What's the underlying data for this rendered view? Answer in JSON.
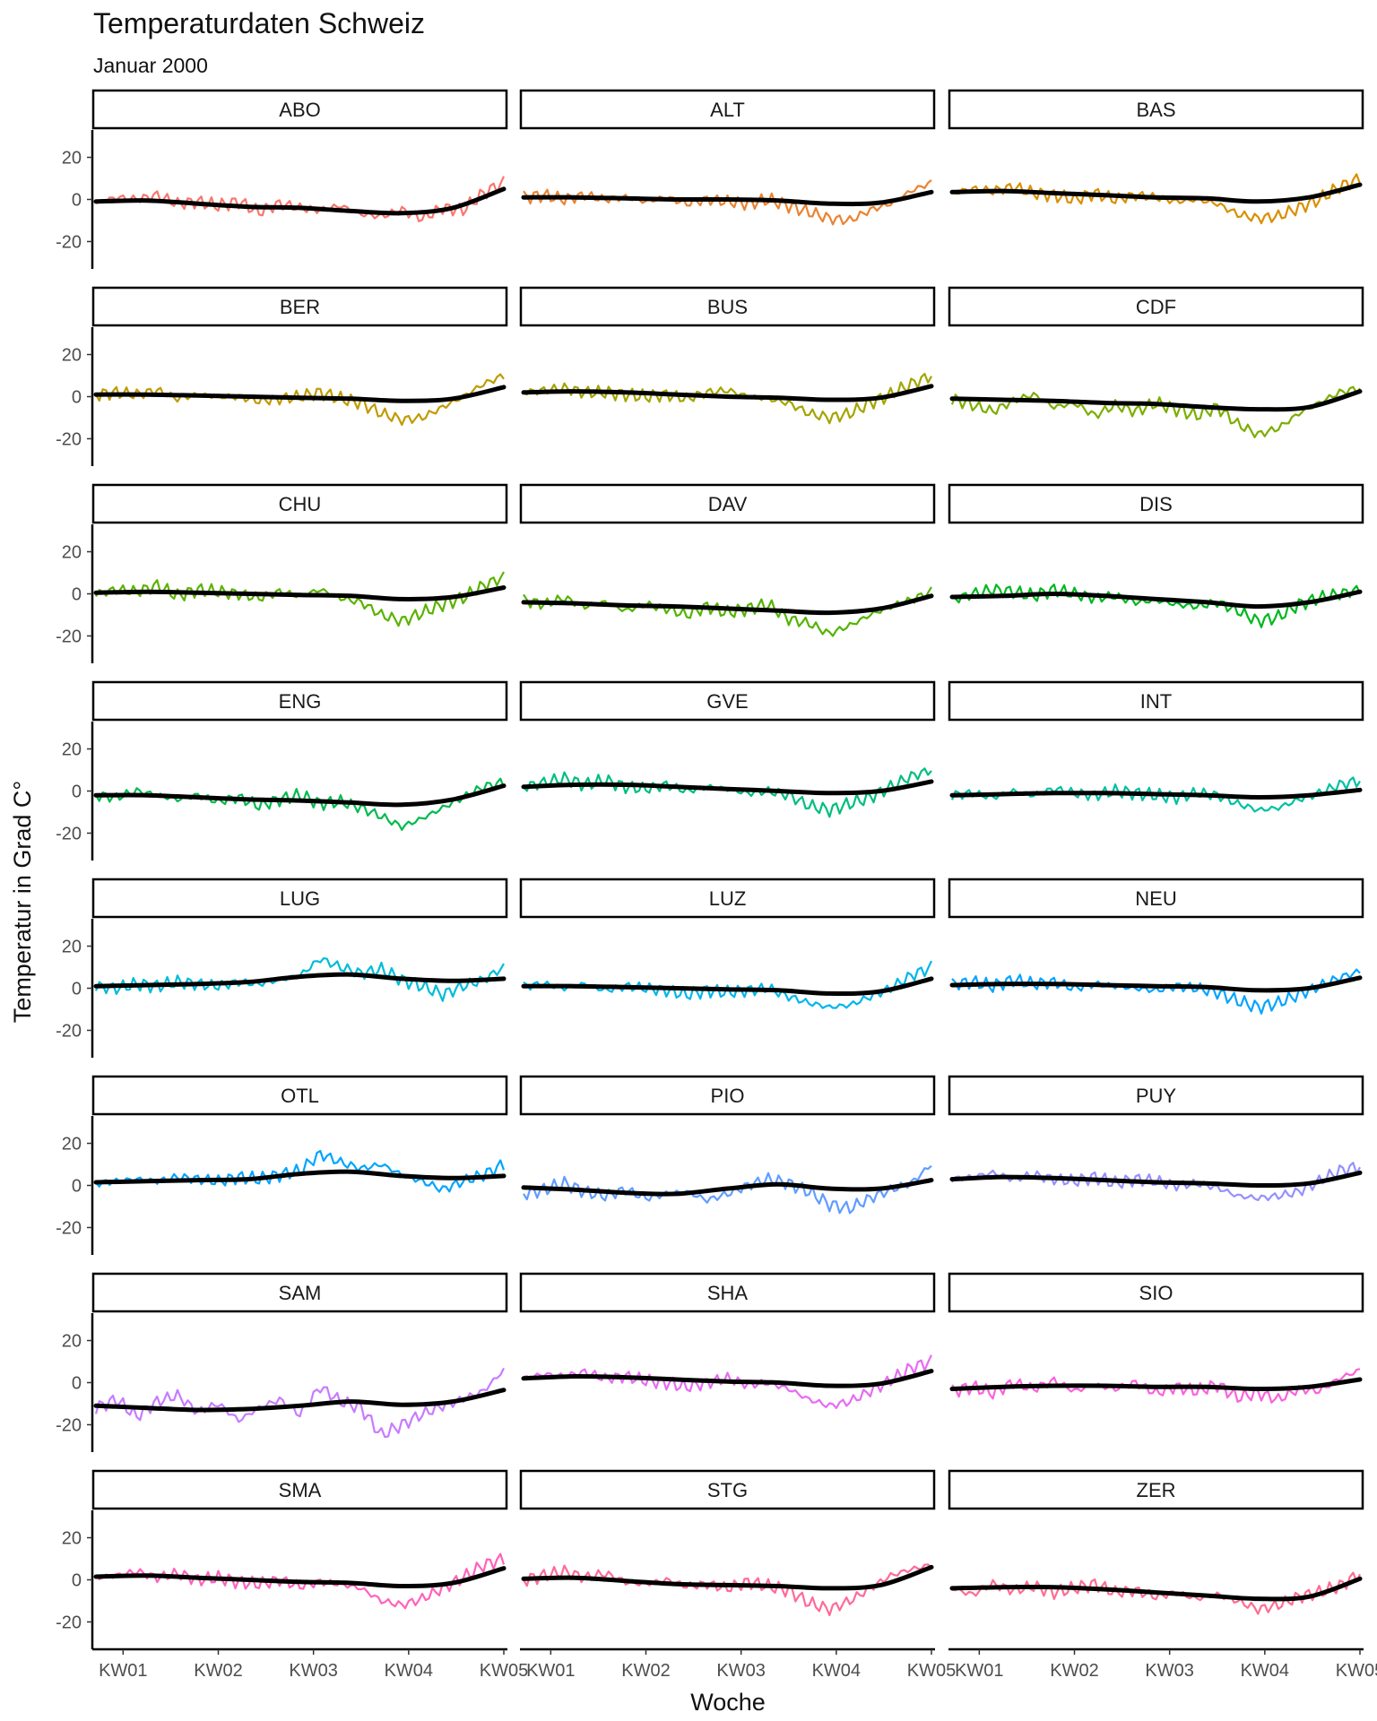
{
  "title": "Temperaturdaten Schweiz",
  "subtitle": "Januar 2000",
  "chart_data": {
    "type": "line",
    "facet_layout": {
      "rows": 8,
      "cols": 3
    },
    "xlabel": "Woche",
    "ylabel": "Temperatur in Grad C°",
    "x_ticks": [
      "KW01",
      "KW02",
      "KW03",
      "KW04",
      "KW05"
    ],
    "x_range_days": [
      1,
      31
    ],
    "y_ticks": [
      -20,
      0,
      20
    ],
    "ylim": [
      -33,
      33
    ],
    "grid": false,
    "smooth_color": "#000000",
    "panels": [
      {
        "station": "ABO",
        "color": "#F8766D",
        "smooth": [
          -1,
          -0.5,
          -2,
          -3.5,
          -4,
          -5.5,
          -6.5,
          -4,
          5
        ],
        "raw": [
          -2,
          1,
          0,
          2,
          -2,
          -1,
          -3,
          -1,
          -6,
          -2,
          -4,
          -5,
          -3,
          -7,
          -8,
          -5,
          -9,
          -4,
          -5,
          3,
          8
        ]
      },
      {
        "station": "ALT",
        "color": "#EA8331",
        "smooth": [
          1,
          1,
          0.5,
          0,
          0,
          -0.5,
          -2,
          -1.5,
          3.5
        ],
        "raw": [
          1,
          2,
          0,
          2,
          0,
          1,
          -1,
          1,
          -2,
          0,
          -1,
          -2,
          0,
          -3,
          -6,
          -9,
          -10,
          -5,
          -2,
          4,
          8
        ]
      },
      {
        "station": "BAS",
        "color": "#D89000",
        "smooth": [
          3.5,
          4,
          3,
          2,
          1,
          0.5,
          -1,
          1,
          7
        ],
        "raw": [
          3,
          5,
          4,
          6,
          3,
          2,
          0,
          3,
          0,
          2,
          1,
          -1,
          0,
          -2,
          -7,
          -9,
          -8,
          -4,
          0,
          6,
          10
        ]
      },
      {
        "station": "BER",
        "color": "#C09B00",
        "smooth": [
          1,
          1,
          0.5,
          0,
          -0.5,
          -1,
          -2,
          -1,
          4.5
        ],
        "raw": [
          1,
          2,
          1,
          3,
          -1,
          1,
          0,
          0,
          -2,
          -1,
          0,
          2,
          -1,
          -3,
          -8,
          -11,
          -10,
          -5,
          0,
          6,
          10
        ]
      },
      {
        "station": "BUS",
        "color": "#A3A500",
        "smooth": [
          2,
          2.5,
          2,
          1,
          0,
          -0.5,
          -1.5,
          -0.5,
          5
        ],
        "raw": [
          2,
          3,
          4,
          2,
          2,
          1,
          0,
          1,
          -1,
          2,
          3,
          0,
          -1,
          -3,
          -8,
          -10,
          -8,
          -3,
          1,
          6,
          10
        ]
      },
      {
        "station": "CDF",
        "color": "#7CAE00",
        "smooth": [
          -1,
          -1.5,
          -2,
          -3,
          -3.5,
          -5,
          -6,
          -5,
          2.5
        ],
        "raw": [
          -1,
          -4,
          -7,
          -2,
          1,
          -5,
          -3,
          -9,
          -4,
          -7,
          -3,
          -6,
          -9,
          -5,
          -13,
          -18,
          -15,
          -8,
          -3,
          2,
          4
        ]
      },
      {
        "station": "CHU",
        "color": "#5BB300",
        "smooth": [
          0.5,
          1,
          0.5,
          0,
          -0.5,
          -1,
          -2.5,
          -1.5,
          3
        ],
        "raw": [
          0,
          2,
          1,
          4,
          -1,
          2,
          1,
          0,
          -2,
          1,
          -1,
          2,
          -2,
          -4,
          -10,
          -13,
          -9,
          -5,
          -2,
          4,
          8
        ]
      },
      {
        "station": "DAV",
        "color": "#53B400",
        "smooth": [
          -4,
          -4.5,
          -5.5,
          -6,
          -7,
          -8,
          -9,
          -7,
          -1
        ],
        "raw": [
          -3,
          -5,
          -2,
          -6,
          -4,
          -8,
          -5,
          -7,
          -10,
          -6,
          -9,
          -7,
          -5,
          -12,
          -14,
          -19,
          -15,
          -10,
          -6,
          -3,
          1
        ]
      },
      {
        "station": "DIS",
        "color": "#00B81F",
        "smooth": [
          -1.5,
          -1,
          0,
          -1,
          -2.5,
          -4,
          -6,
          -4,
          1
        ],
        "raw": [
          -3,
          0,
          2,
          1,
          -1,
          2,
          0,
          -2,
          -1,
          -4,
          -3,
          -5,
          -6,
          -4,
          -8,
          -13,
          -11,
          -5,
          -2,
          0,
          2
        ]
      },
      {
        "station": "ENG",
        "color": "#00BB4E",
        "smooth": [
          -2,
          -2,
          -3,
          -4,
          -4.5,
          -5.5,
          -6.5,
          -4,
          2.5
        ],
        "raw": [
          -2,
          -3,
          0,
          -2,
          -4,
          -2,
          -5,
          -3,
          -7,
          -4,
          -2,
          -6,
          -5,
          -8,
          -12,
          -17,
          -13,
          -8,
          -3,
          2,
          4
        ]
      },
      {
        "station": "GVE",
        "color": "#00BF7D",
        "smooth": [
          2,
          3,
          3,
          2,
          1,
          0,
          -1,
          0,
          4.5
        ],
        "raw": [
          2,
          4,
          6,
          3,
          5,
          2,
          1,
          3,
          0,
          2,
          1,
          -1,
          0,
          -2,
          -7,
          -9,
          -6,
          -3,
          2,
          7,
          10
        ]
      },
      {
        "station": "INT",
        "color": "#00C1A3",
        "smooth": [
          -2,
          -1.5,
          -1,
          -1,
          -1.5,
          -2,
          -3,
          -2,
          0.5
        ],
        "raw": [
          -2,
          -1,
          -3,
          0,
          -2,
          1,
          -1,
          -2,
          0,
          -1,
          -2,
          -3,
          -1,
          -2,
          -6,
          -9,
          -8,
          -4,
          -1,
          3,
          5
        ]
      },
      {
        "station": "LUG",
        "color": "#00BCD8",
        "smooth": [
          1,
          1.5,
          2,
          3,
          5.5,
          6.5,
          4.5,
          3.5,
          4.5
        ],
        "raw": [
          1,
          0,
          2,
          1,
          3,
          2,
          1,
          3,
          2,
          4,
          6,
          14,
          10,
          7,
          9,
          4,
          1,
          -3,
          1,
          4,
          10
        ]
      },
      {
        "station": "LUZ",
        "color": "#00B6EB",
        "smooth": [
          1,
          1,
          0.5,
          0,
          -0.5,
          -1,
          -2.5,
          -1.5,
          4.5
        ],
        "raw": [
          1,
          2,
          0,
          2,
          -1,
          1,
          0,
          -1,
          -3,
          -1,
          -2,
          -1,
          0,
          -4,
          -7,
          -9,
          -8,
          -4,
          0,
          6,
          10
        ]
      },
      {
        "station": "NEU",
        "color": "#06A4FF",
        "smooth": [
          1.5,
          2,
          2,
          1.5,
          1,
          0.5,
          -1,
          0,
          5
        ],
        "raw": [
          2,
          3,
          1,
          4,
          2,
          3,
          0,
          2,
          1,
          0,
          -1,
          1,
          0,
          -2,
          -6,
          -9,
          -7,
          -3,
          1,
          5,
          8
        ]
      },
      {
        "station": "OTL",
        "color": "#00A5FF",
        "smooth": [
          1.5,
          2,
          2.5,
          3,
          5.5,
          6.5,
          4.5,
          3.5,
          4.5
        ],
        "raw": [
          1,
          2,
          3,
          2,
          4,
          3,
          2,
          4,
          3,
          5,
          7,
          15,
          11,
          8,
          10,
          5,
          2,
          -2,
          2,
          5,
          10
        ]
      },
      {
        "station": "PIO",
        "color": "#619CFF",
        "smooth": [
          -1,
          -2,
          -3.5,
          -4,
          -1.5,
          0.5,
          -1.5,
          -1.5,
          2.5
        ],
        "raw": [
          -4,
          -2,
          1,
          -3,
          -5,
          -2,
          -6,
          -4,
          -3,
          -7,
          -4,
          0,
          3,
          1,
          -3,
          -9,
          -11,
          -6,
          -2,
          1,
          10
        ]
      },
      {
        "station": "PUY",
        "color": "#9590FF",
        "smooth": [
          3,
          4,
          3.5,
          2.5,
          1.5,
          1,
          0,
          1,
          6
        ],
        "raw": [
          3,
          4,
          6,
          3,
          5,
          3,
          2,
          4,
          1,
          3,
          2,
          0,
          1,
          -1,
          -5,
          -6,
          -5,
          -3,
          2,
          7,
          9
        ]
      },
      {
        "station": "SAM",
        "color": "#C77CFF",
        "smooth": [
          -11,
          -12,
          -13,
          -12.5,
          -11,
          -9,
          -10.5,
          -9,
          -3.5
        ],
        "raw": [
          -12,
          -8,
          -16,
          -9,
          -6,
          -14,
          -10,
          -18,
          -12,
          -8,
          -15,
          -2,
          -9,
          -12,
          -25,
          -20,
          -15,
          -11,
          -8,
          -4,
          6
        ]
      },
      {
        "station": "SHA",
        "color": "#E76BF3",
        "smooth": [
          2,
          3,
          2.5,
          1.5,
          0.5,
          0,
          -1.5,
          -0.5,
          5.5
        ],
        "raw": [
          2,
          4,
          3,
          5,
          2,
          3,
          1,
          0,
          -2,
          0,
          2,
          -1,
          0,
          -3,
          -8,
          -11,
          -9,
          -4,
          1,
          7,
          10
        ]
      },
      {
        "station": "SIO",
        "color": "#FA62DB",
        "smooth": [
          -3,
          -2,
          -1.5,
          -1.5,
          -2,
          -2,
          -3,
          -2,
          1.5
        ],
        "raw": [
          -4,
          -2,
          -5,
          0,
          -3,
          1,
          -4,
          -1,
          -3,
          0,
          -5,
          -2,
          -4,
          -1,
          -7,
          -5,
          -8,
          -3,
          -4,
          2,
          6
        ]
      },
      {
        "station": "SMA",
        "color": "#FF62BC",
        "smooth": [
          1.5,
          2,
          1,
          0,
          -1,
          -1.5,
          -3,
          -1.5,
          5.5
        ],
        "raw": [
          1,
          2,
          4,
          1,
          3,
          0,
          1,
          -1,
          -2,
          0,
          -3,
          -1,
          -2,
          -4,
          -10,
          -12,
          -9,
          -4,
          1,
          7,
          10
        ]
      },
      {
        "station": "STG",
        "color": "#FF6A98",
        "smooth": [
          0.5,
          1,
          -0.5,
          -2,
          -2.5,
          -3,
          -4,
          -2.5,
          6
        ],
        "raw": [
          0,
          2,
          4,
          1,
          3,
          -1,
          -2,
          0,
          -3,
          -2,
          -4,
          -1,
          -3,
          -5,
          -11,
          -14,
          -10,
          -4,
          2,
          5,
          7
        ]
      },
      {
        "station": "ZER",
        "color": "#FF6C91",
        "smooth": [
          -4,
          -3.5,
          -3.5,
          -4.5,
          -6,
          -7.5,
          -9,
          -8,
          0.5
        ],
        "raw": [
          -4,
          -7,
          -2,
          -5,
          -3,
          -6,
          -4,
          -2,
          -6,
          -5,
          -8,
          -6,
          -9,
          -7,
          -10,
          -14,
          -12,
          -8,
          -6,
          -3,
          3
        ]
      }
    ]
  }
}
